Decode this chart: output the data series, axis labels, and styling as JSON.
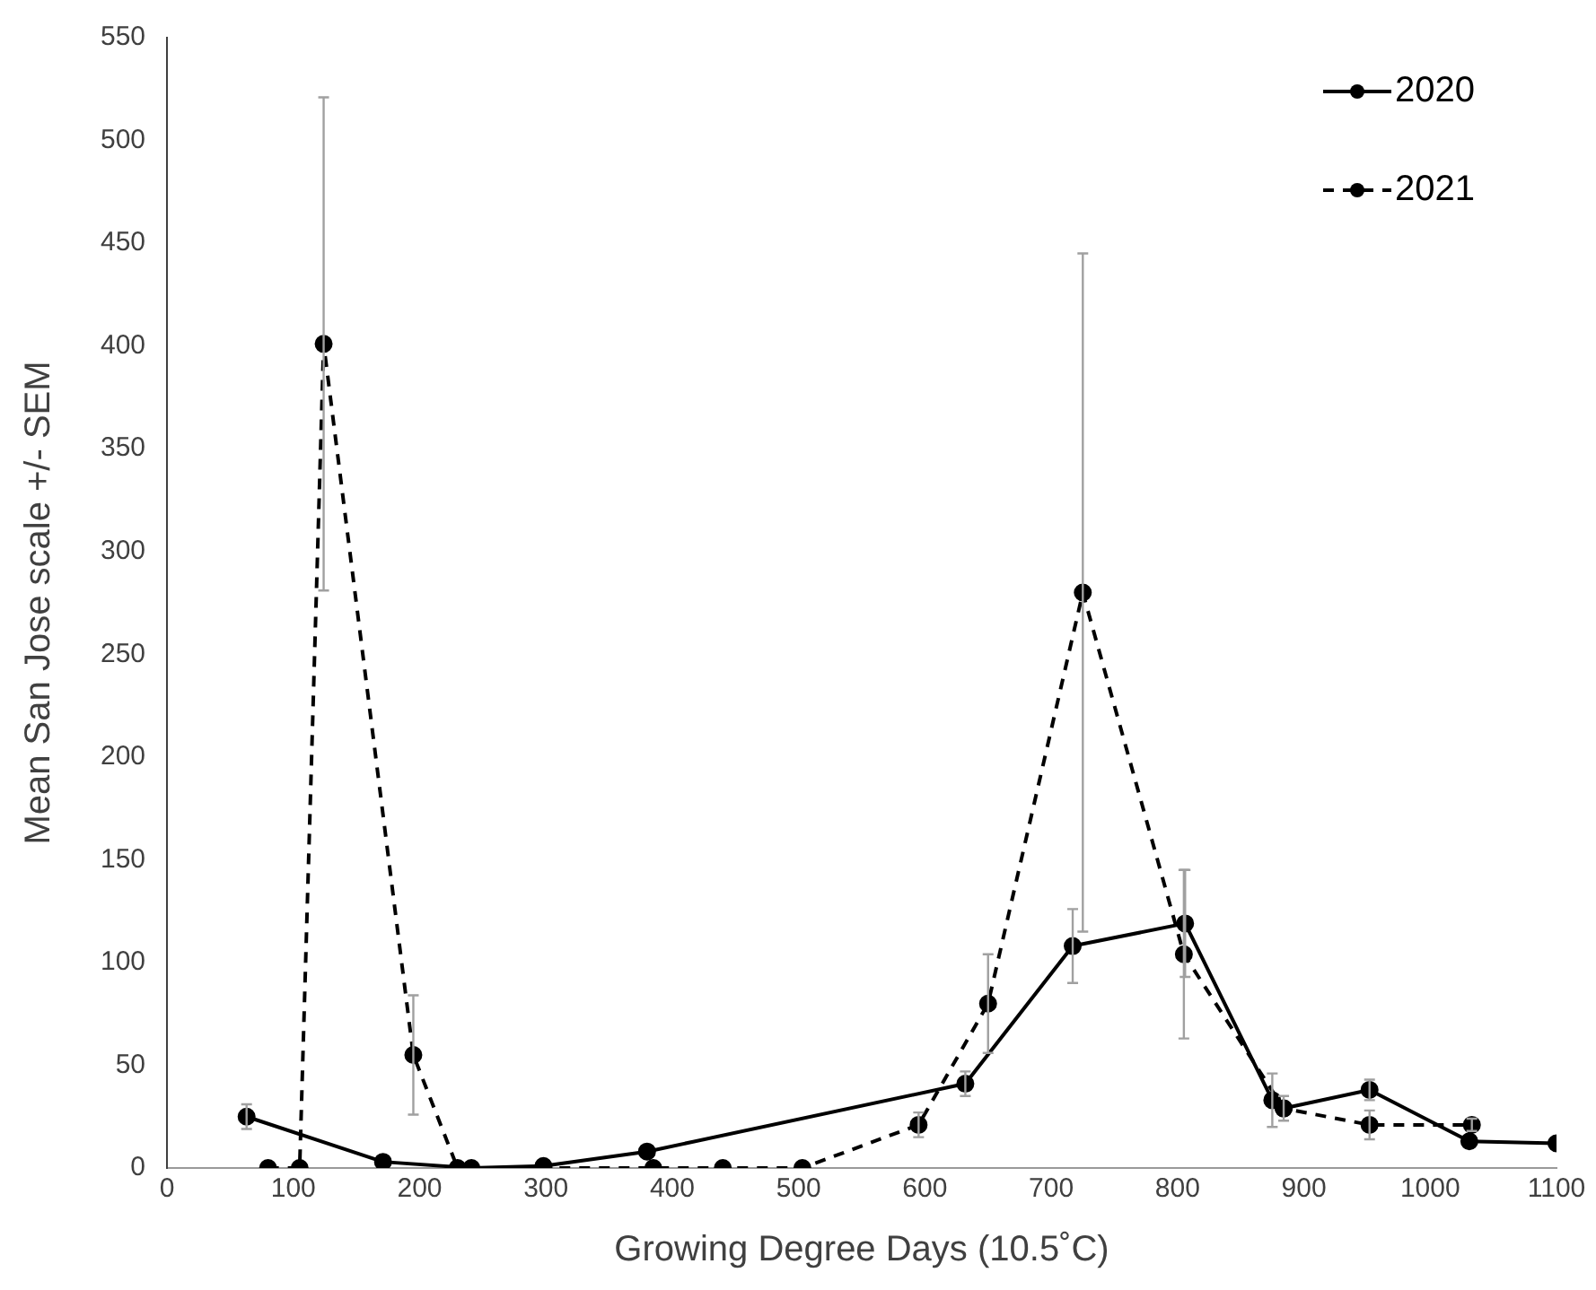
{
  "chart_data": {
    "type": "line",
    "xlabel": "Growing Degree Days (10.5˚C)",
    "ylabel": "Mean San Jose scale +/- SEM",
    "xlim": [
      0,
      1100
    ],
    "xticks": [
      0,
      100,
      200,
      300,
      400,
      500,
      600,
      700,
      800,
      900,
      1000,
      1100
    ],
    "ylim": [
      0,
      550
    ],
    "yticks": [
      0,
      50,
      100,
      150,
      200,
      250,
      300,
      350,
      400,
      450,
      500,
      550
    ],
    "grid": false,
    "legend": "top right",
    "marker": "circle",
    "series": [
      {
        "name": "2020",
        "color": "#000000",
        "line_style": "solid",
        "x": [
          63,
          171,
          241,
          298,
          380,
          632,
          717,
          806,
          875,
          884,
          952,
          1031,
          1100
        ],
        "values": [
          25,
          3,
          0,
          1,
          8,
          41,
          108,
          119,
          33,
          29,
          38,
          13,
          12
        ],
        "errors": [
          6,
          null,
          null,
          null,
          null,
          6,
          18,
          26,
          13,
          6,
          5,
          null,
          null
        ]
      },
      {
        "name": "2021",
        "color": "#000000",
        "line_style": "dashed",
        "x": [
          80,
          105,
          124,
          195,
          230,
          298,
          385,
          440,
          503,
          595,
          650,
          725,
          805,
          884,
          952,
          1033
        ],
        "values": [
          0,
          0,
          401,
          55,
          0,
          0,
          0,
          0,
          0,
          21,
          80,
          280,
          104,
          29,
          21,
          21
        ],
        "errors": [
          null,
          null,
          120,
          29,
          null,
          null,
          null,
          null,
          null,
          6,
          24,
          165,
          41,
          null,
          7,
          3
        ]
      }
    ]
  }
}
